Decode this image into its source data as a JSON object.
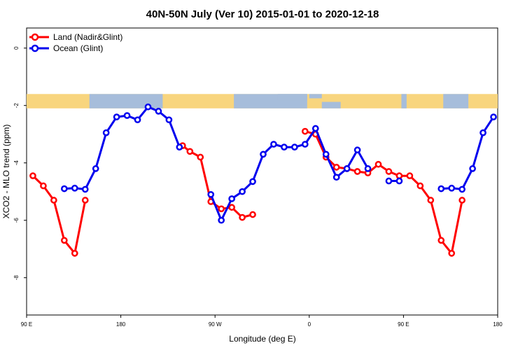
{
  "chart_data": {
    "type": "line",
    "title": "40N-50N July (Ver 10)   2015-01-01 to 2020-12-18",
    "xlabel": "Longitude (deg E)",
    "ylabel": "XCO2 - MLO trend (ppm)",
    "xlim": [
      90,
      540
    ],
    "ylim": [
      -9.3,
      0.7
    ],
    "x_ticks": [
      {
        "value": 90,
        "label": "90 E"
      },
      {
        "value": 180,
        "label": "180"
      },
      {
        "value": 270,
        "label": "90 W"
      },
      {
        "value": 360,
        "label": "0"
      },
      {
        "value": 450,
        "label": "90 E"
      },
      {
        "value": 540,
        "label": "180"
      }
    ],
    "y_ticks": [
      {
        "value": 0,
        "label": "0"
      },
      {
        "value": -2,
        "label": "-2"
      },
      {
        "value": -4,
        "label": "-4"
      },
      {
        "value": -6,
        "label": "-6"
      },
      {
        "value": -8,
        "label": "-8"
      }
    ],
    "map_strip": {
      "y_top": -1.6,
      "y_bottom": -2.1,
      "land_color": "#f8d57e",
      "ocean_color": "#a6bddb"
    },
    "legend": {
      "placement": "top-left"
    },
    "series": [
      {
        "name": "Land (Nadir&Glint)",
        "color": "#ff0000",
        "segments": [
          [
            [
              96,
              -4.45
            ],
            [
              106,
              -4.8
            ],
            [
              116,
              -5.3
            ],
            [
              126,
              -6.7
            ],
            [
              136,
              -7.15
            ],
            [
              146,
              -5.3
            ]
          ],
          [
            [
              239,
              -3.4
            ],
            [
              246,
              -3.6
            ],
            [
              256,
              -3.8
            ],
            [
              266,
              -5.35
            ],
            [
              276,
              -5.6
            ],
            [
              286,
              -5.55
            ],
            [
              296,
              -5.9
            ],
            [
              306,
              -5.8
            ]
          ],
          [
            [
              356,
              -2.9
            ],
            [
              366,
              -3.0
            ],
            [
              376,
              -3.8
            ],
            [
              386,
              -4.15
            ],
            [
              396,
              -4.2
            ],
            [
              406,
              -4.3
            ],
            [
              416,
              -4.35
            ],
            [
              426,
              -4.05
            ],
            [
              436,
              -4.3
            ],
            [
              446,
              -4.45
            ],
            [
              456,
              -4.45
            ],
            [
              466,
              -4.8
            ],
            [
              476,
              -5.3
            ],
            [
              486,
              -6.7
            ],
            [
              496,
              -7.15
            ],
            [
              506,
              -5.3
            ]
          ]
        ]
      },
      {
        "name": "Ocean (Glint)",
        "color": "#0000ee",
        "segments": [
          [
            [
              126,
              -4.9
            ],
            [
              136,
              -4.88
            ],
            [
              146,
              -4.92
            ],
            [
              156,
              -4.2
            ],
            [
              166,
              -2.95
            ],
            [
              176,
              -2.4
            ],
            [
              186,
              -2.35
            ],
            [
              196,
              -2.5
            ],
            [
              206,
              -2.05
            ],
            [
              216,
              -2.2
            ],
            [
              226,
              -2.5
            ],
            [
              236,
              -3.45
            ]
          ],
          [
            [
              266,
              -5.1
            ],
            [
              276,
              -6.0
            ],
            [
              286,
              -5.25
            ],
            [
              296,
              -5.0
            ],
            [
              306,
              -4.65
            ],
            [
              316,
              -3.7
            ],
            [
              326,
              -3.35
            ],
            [
              336,
              -3.45
            ],
            [
              346,
              -3.45
            ],
            [
              356,
              -3.35
            ],
            [
              366,
              -2.8
            ],
            [
              376,
              -3.7
            ],
            [
              386,
              -4.5
            ],
            [
              396,
              -4.2
            ],
            [
              406,
              -3.55
            ],
            [
              416,
              -4.2
            ]
          ],
          [
            [
              436,
              -4.63
            ],
            [
              446,
              -4.63
            ]
          ],
          [
            [
              486,
              -4.9
            ],
            [
              496,
              -4.88
            ],
            [
              506,
              -4.92
            ],
            [
              516,
              -4.2
            ],
            [
              526,
              -2.95
            ],
            [
              536,
              -2.4
            ]
          ]
        ]
      }
    ]
  }
}
